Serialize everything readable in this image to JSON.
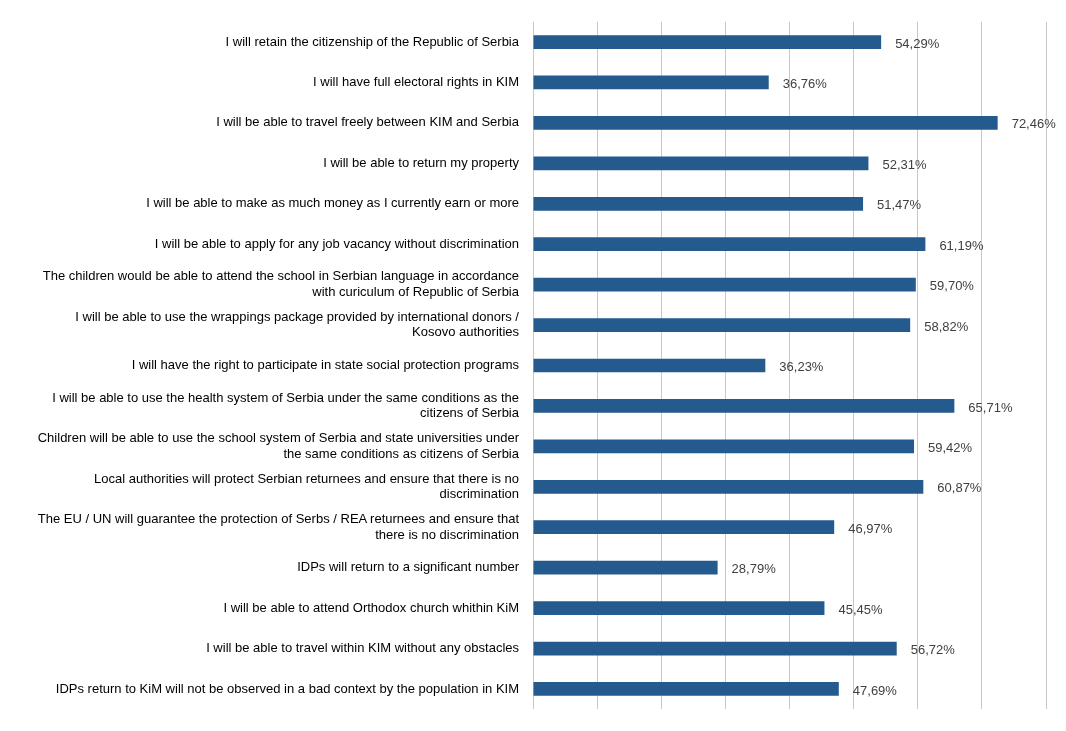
{
  "chart_data": {
    "type": "bar",
    "orientation": "horizontal",
    "categories": [
      "I will retain the citizenship of the Republic of Serbia",
      "I will have full electoral rights in KIM",
      "I will be able to travel freely between KIM and Serbia",
      "I will be able to return my property",
      "I will be able to make as much money as I currently earn or more",
      "I will be able to apply for any job vacancy without discrimination",
      "The children would be able to attend the school in Serbian language in accordance with curiculum of Republic of Serbia",
      "I will be able to use the wrappings package provided by international donors / Kosovo authorities",
      "I will have the right to participate in state social protection programs",
      "I will be able to use the health system of Serbia under the same conditions as the citizens of Serbia",
      "Children will be able to use the school system of Serbia and state universities under the same conditions as citizens of Serbia",
      "Local authorities will protect Serbian returnees and ensure that there is no discrimination",
      "The EU / UN will guarantee the protection of Serbs / REA returnees and ensure that there is no discrimination",
      "IDPs will return to a significant number",
      "I will be able to attend Orthodox church whithin KiM",
      "I will be able to travel within KIM without any obstacles",
      "IDPs return to KiM will not be observed in a bad context by the population in KIM"
    ],
    "values": [
      54.29,
      36.76,
      72.46,
      52.31,
      51.47,
      61.19,
      59.7,
      58.82,
      36.23,
      65.71,
      59.42,
      60.87,
      46.97,
      28.79,
      45.45,
      56.72,
      47.69
    ],
    "value_labels": [
      "54,29%",
      "36,76%",
      "72,46%",
      "52,31%",
      "51,47%",
      "61,19%",
      "59,70%",
      "58,82%",
      "36,23%",
      "65,71%",
      "59,42%",
      "60,87%",
      "46,97%",
      "28,79%",
      "45,45%",
      "56,72%",
      "47,69%"
    ],
    "color": "#255a8e",
    "xlim": [
      0,
      80
    ],
    "xticks": [
      {
        "value": 0,
        "label": null
      },
      {
        "value": 10,
        "label": null
      },
      {
        "value": 20,
        "label": null
      },
      {
        "value": 30,
        "label": null
      },
      {
        "value": 40,
        "label": null
      },
      {
        "value": 50,
        "label": null
      },
      {
        "value": 60,
        "label": null
      },
      {
        "value": 70,
        "label": null
      },
      {
        "value": 80,
        "label": null
      }
    ],
    "grid": "x",
    "tick_labels": "y",
    "legend": false
  }
}
